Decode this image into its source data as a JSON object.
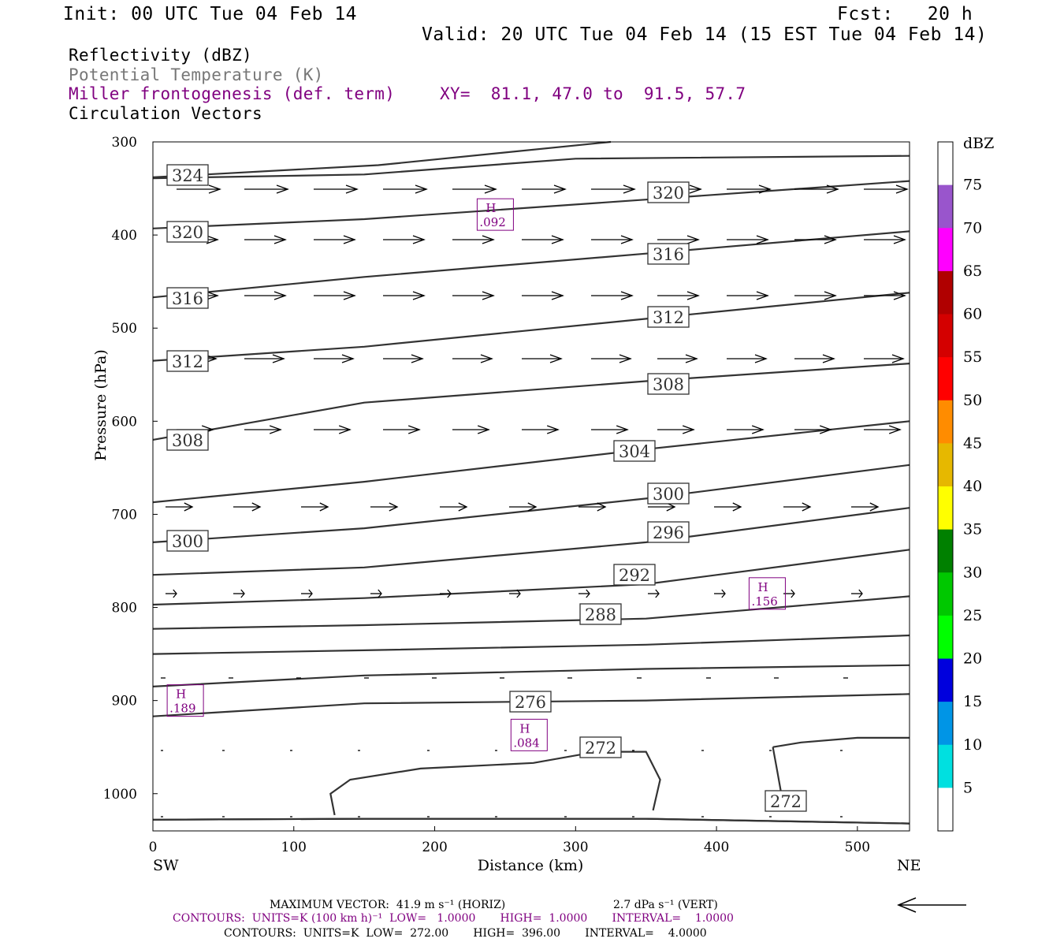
{
  "header": {
    "init": "Init: 00 UTC Tue 04 Feb 14",
    "fcst": "Fcst:   20 h",
    "valid": "Valid: 20 UTC Tue 04 Feb 14 (15 EST Tue 04 Feb 14)"
  },
  "fields": {
    "reflectivity": "Reflectivity (dBZ)",
    "theta": "Potential Temperature (K)",
    "frontogenesis": "Miller frontogenesis (def. term)",
    "xy": "XY=  81.1, 47.0 to  91.5, 57.7",
    "circulation": "Circulation Vectors"
  },
  "footer": {
    "max_vector": "MAXIMUM VECTOR:  41.9 m s⁻¹ (HORIZ)",
    "max_vector_vert": "2.7 dPa s⁻¹ (VERT)",
    "contours1": "CONTOURS:  UNITS=K (100 km h)⁻¹  LOW=   1.0000       HIGH=  1.0000       INTERVAL=    1.0000",
    "contours2": "CONTOURS:  UNITS=K  LOW=  272.00       HIGH=  396.00       INTERVAL=    4.0000"
  },
  "colors": {
    "purple": "#800080",
    "theta_line": "#333333",
    "grey_text": "#777777"
  },
  "chart_data": {
    "type": "cross-section",
    "xlabel": "Distance (km)",
    "ylabel": "Pressure (hPa)",
    "xlim": [
      0,
      537
    ],
    "ylim": [
      1040,
      300
    ],
    "x_ticks": [
      0,
      100,
      200,
      300,
      400,
      500
    ],
    "y_ticks": [
      300,
      400,
      500,
      600,
      700,
      800,
      900,
      1000
    ],
    "left_end_label": "SW",
    "right_end_label": "NE",
    "colorbar": {
      "unit": "dBZ",
      "ticks": [
        5,
        10,
        15,
        20,
        25,
        30,
        35,
        40,
        45,
        50,
        55,
        60,
        65,
        70,
        75
      ],
      "colors": [
        "#ffffff",
        "#00e0e0",
        "#0095e6",
        "#0000dd",
        "#00ff00",
        "#00c800",
        "#008000",
        "#ffff00",
        "#e6b800",
        "#ff8c00",
        "#ff0000",
        "#d40000",
        "#b00000",
        "#ff00ff",
        "#9955cc",
        "#ffffff"
      ]
    },
    "theta_contours": [
      {
        "label": "",
        "points": [
          [
            0,
            338
          ],
          [
            160,
            325
          ],
          [
            325,
            300
          ]
        ]
      },
      {
        "label": "324",
        "points": [
          [
            0,
            339
          ],
          [
            150,
            335
          ],
          [
            300,
            318
          ],
          [
            537,
            315
          ]
        ]
      },
      {
        "label": "320",
        "points": [
          [
            0,
            393
          ],
          [
            150,
            383
          ],
          [
            350,
            362
          ],
          [
            537,
            342
          ]
        ]
      },
      {
        "label": "316",
        "points": [
          [
            0,
            467
          ],
          [
            150,
            445
          ],
          [
            350,
            420
          ],
          [
            537,
            396
          ]
        ]
      },
      {
        "label": "312",
        "points": [
          [
            0,
            535
          ],
          [
            150,
            520
          ],
          [
            350,
            490
          ],
          [
            537,
            462
          ]
        ]
      },
      {
        "label": "308",
        "points": [
          [
            0,
            620
          ],
          [
            150,
            580
          ],
          [
            350,
            557
          ],
          [
            537,
            538
          ]
        ]
      },
      {
        "label": "304",
        "points": [
          [
            0,
            687
          ],
          [
            150,
            665
          ],
          [
            350,
            630
          ],
          [
            537,
            600
          ]
        ]
      },
      {
        "label": "300",
        "points": [
          [
            0,
            730
          ],
          [
            150,
            715
          ],
          [
            350,
            683
          ],
          [
            537,
            647
          ]
        ]
      },
      {
        "label": "296",
        "points": [
          [
            0,
            765
          ],
          [
            150,
            757
          ],
          [
            350,
            730
          ],
          [
            537,
            693
          ]
        ]
      },
      {
        "label": "292",
        "points": [
          [
            0,
            797
          ],
          [
            150,
            790
          ],
          [
            350,
            775
          ],
          [
            537,
            738
          ]
        ]
      },
      {
        "label": "288",
        "points": [
          [
            0,
            823
          ],
          [
            150,
            819
          ],
          [
            350,
            812
          ],
          [
            537,
            788
          ]
        ]
      },
      {
        "label": "",
        "points": [
          [
            0,
            850
          ],
          [
            150,
            846
          ],
          [
            350,
            840
          ],
          [
            537,
            830
          ]
        ]
      },
      {
        "label": "",
        "points": [
          [
            0,
            885
          ],
          [
            150,
            873
          ],
          [
            350,
            866
          ],
          [
            537,
            862
          ]
        ]
      },
      {
        "label": "276",
        "points": [
          [
            0,
            917
          ],
          [
            150,
            903
          ],
          [
            350,
            900
          ],
          [
            537,
            893
          ]
        ]
      },
      {
        "label": "272",
        "points": [
          [
            0,
            1028
          ],
          [
            150,
            1027
          ],
          [
            350,
            1027
          ],
          [
            537,
            1032
          ]
        ]
      },
      {
        "label": "272",
        "points": [
          [
            0,
            1028
          ],
          [
            150,
            1027
          ],
          [
            350,
            1027
          ],
          [
            537,
            1032
          ]
        ]
      }
    ],
    "closed_272": [
      [
        129,
        1023
      ],
      [
        126,
        1000
      ],
      [
        140,
        985
      ],
      [
        190,
        973
      ],
      [
        270,
        967
      ],
      [
        315,
        955
      ],
      [
        350,
        955
      ],
      [
        360,
        985
      ],
      [
        355,
        1018
      ]
    ],
    "right_272": [
      [
        440,
        950
      ],
      [
        460,
        945
      ],
      [
        500,
        940
      ],
      [
        537,
        940
      ]
    ],
    "frontogenesis_maxima": [
      {
        "label": "H",
        "value": ".092",
        "x": 243,
        "p": 378
      },
      {
        "label": "H",
        "value": ".156",
        "x": 436,
        "p": 785
      },
      {
        "label": "H",
        "value": ".189",
        "x": 23,
        "p": 900
      },
      {
        "label": "H",
        "value": ".084",
        "x": 267,
        "p": 937
      }
    ]
  }
}
